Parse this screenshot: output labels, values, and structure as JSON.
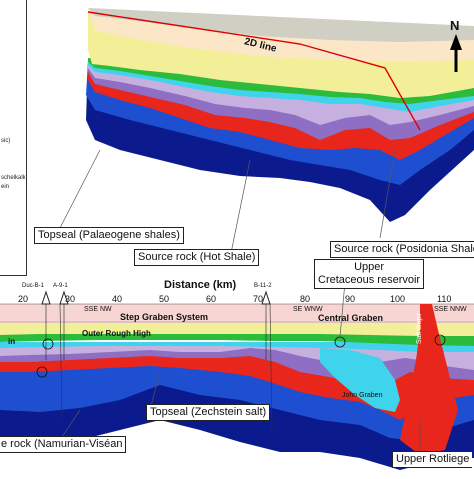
{
  "map_3d": {
    "line_label": "2D line",
    "north_label": "N"
  },
  "legend": {
    "items": [
      "sic)",
      "schelkalk",
      "ein"
    ]
  },
  "section": {
    "axis_title": "Distance (km)",
    "ticks": [
      "20",
      "30",
      "40",
      "50",
      "60",
      "70",
      "80",
      "90",
      "100",
      "110"
    ],
    "wells": [
      "Duc-B-1",
      "A-9-1",
      "B-11-2"
    ],
    "orientations": [
      "SSE NW",
      "SE WNW",
      "SSE NNW"
    ],
    "structures": [
      "Step Graben System",
      "Central Graben",
      "Outer Rough High",
      "in",
      "John Graben",
      "Salt diapir"
    ],
    "callouts": {
      "topseal_palaeogene": "Topseal (Palaeogene shales)",
      "source_hot_shale": "Source rock (Hot Shale)",
      "source_posidonia": "Source rock (Posidonia Shale",
      "upper_cretaceous_line1": "Upper",
      "upper_cretaceous_line2": "Cretaceous reservoir",
      "topseal_zechstein": "Topseal (Zechstein salt)",
      "source_namurian": "e rock (Namurian-Viséan",
      "upper_rotliegend": "Upper Rotliege"
    }
  },
  "colors": {
    "navy": "#0b1a8c",
    "blue": "#1f4fd1",
    "red": "#e8261c",
    "purple": "#8f6fc4",
    "lavender": "#c5b0e0",
    "cyan": "#3fd3ec",
    "green": "#2dbb3b",
    "yellow": "#f3ef98",
    "cream": "#fbe7c8",
    "pink": "#f6d5d3"
  }
}
